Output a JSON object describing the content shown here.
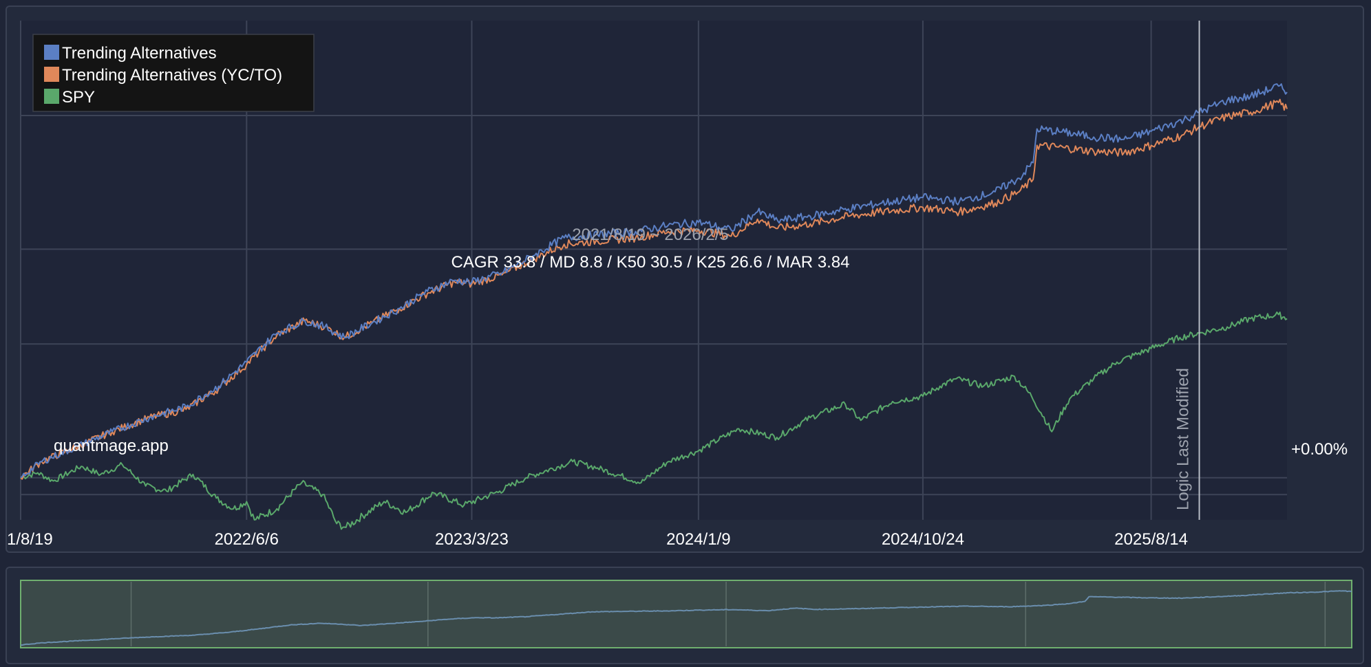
{
  "chart_data": {
    "type": "line",
    "date_range": "2021/8/19 ~ 2026/2/5",
    "stats": "CAGR 33.8 / MD 8.8 / K50 30.5 / K25 26.6 / MAR 3.84",
    "watermark": "quantmage.app",
    "marker_label": "Logic Last Modified",
    "marker_date": "2025-10-15",
    "baseline_label": "+0.00%",
    "x_start": "2021-08-19",
    "x_end": "2026-02-05",
    "x_ticks": [
      {
        "date": "2021-08-19",
        "label": "1/8/19"
      },
      {
        "date": "2022-06-06",
        "label": "2022/6/6"
      },
      {
        "date": "2023-03-23",
        "label": "2023/3/23"
      },
      {
        "date": "2024-01-09",
        "label": "2024/1/9"
      },
      {
        "date": "2024-10-24",
        "label": "2024/10/24"
      },
      {
        "date": "2025-08-14",
        "label": "2025/8/14"
      }
    ],
    "y_scale": "log",
    "y_range_pct": [
      -12,
      300
    ],
    "legend_position": "top-left",
    "grid": true,
    "series": [
      {
        "name": "Trending Alternatives",
        "color": "#5b7fc4",
        "points": [
          [
            "2021-08-19",
            0
          ],
          [
            "2021-09-15",
            5
          ],
          [
            "2021-11-01",
            10
          ],
          [
            "2021-12-15",
            15
          ],
          [
            "2022-02-01",
            20
          ],
          [
            "2022-03-20",
            24
          ],
          [
            "2022-05-01",
            32
          ],
          [
            "2022-06-06",
            42
          ],
          [
            "2022-07-15",
            55
          ],
          [
            "2022-08-20",
            61
          ],
          [
            "2022-09-15",
            58
          ],
          [
            "2022-10-10",
            53
          ],
          [
            "2022-11-15",
            60
          ],
          [
            "2022-12-20",
            67
          ],
          [
            "2023-01-25",
            76
          ],
          [
            "2023-03-01",
            82
          ],
          [
            "2023-03-23",
            81
          ],
          [
            "2023-05-01",
            86
          ],
          [
            "2023-06-10",
            96
          ],
          [
            "2023-07-20",
            107
          ],
          [
            "2023-09-01",
            109
          ],
          [
            "2023-10-20",
            111
          ],
          [
            "2023-12-01",
            115
          ],
          [
            "2024-01-09",
            117
          ],
          [
            "2024-02-20",
            112
          ],
          [
            "2024-03-25",
            124
          ],
          [
            "2024-04-20",
            118
          ],
          [
            "2024-06-01",
            121
          ],
          [
            "2024-07-20",
            126
          ],
          [
            "2024-09-01",
            130
          ],
          [
            "2024-10-24",
            134
          ],
          [
            "2024-12-10",
            131
          ],
          [
            "2025-01-25",
            138
          ],
          [
            "2025-02-25",
            148
          ],
          [
            "2025-03-15",
            160
          ],
          [
            "2025-03-20",
            188
          ],
          [
            "2025-04-25",
            185
          ],
          [
            "2025-06-01",
            181
          ],
          [
            "2025-07-10",
            179
          ],
          [
            "2025-08-14",
            186
          ],
          [
            "2025-09-25",
            196
          ],
          [
            "2025-10-15",
            203
          ],
          [
            "2025-11-20",
            214
          ],
          [
            "2025-12-20",
            218
          ],
          [
            "2026-01-25",
            228
          ],
          [
            "2026-02-05",
            222
          ]
        ]
      },
      {
        "name": "Trending Alternatives (YC/TO)",
        "color": "#e0885a",
        "points": [
          [
            "2021-08-19",
            0
          ],
          [
            "2021-09-15",
            5
          ],
          [
            "2021-11-01",
            10
          ],
          [
            "2021-12-15",
            15
          ],
          [
            "2022-02-01",
            20
          ],
          [
            "2022-03-20",
            23
          ],
          [
            "2022-05-01",
            31
          ],
          [
            "2022-06-06",
            41
          ],
          [
            "2022-07-15",
            54
          ],
          [
            "2022-08-20",
            61
          ],
          [
            "2022-09-15",
            58
          ],
          [
            "2022-10-10",
            53
          ],
          [
            "2022-11-15",
            60
          ],
          [
            "2022-12-20",
            67
          ],
          [
            "2023-01-25",
            75
          ],
          [
            "2023-03-01",
            81
          ],
          [
            "2023-03-23",
            80
          ],
          [
            "2023-05-01",
            85
          ],
          [
            "2023-06-10",
            94
          ],
          [
            "2023-07-20",
            103
          ],
          [
            "2023-09-01",
            105
          ],
          [
            "2023-10-20",
            107
          ],
          [
            "2023-12-01",
            111
          ],
          [
            "2024-01-09",
            112
          ],
          [
            "2024-02-20",
            108
          ],
          [
            "2024-03-25",
            119
          ],
          [
            "2024-04-20",
            113
          ],
          [
            "2024-06-01",
            116
          ],
          [
            "2024-07-20",
            121
          ],
          [
            "2024-09-01",
            124
          ],
          [
            "2024-10-24",
            127
          ],
          [
            "2024-12-10",
            124
          ],
          [
            "2025-01-25",
            130
          ],
          [
            "2025-02-25",
            138
          ],
          [
            "2025-03-15",
            147
          ],
          [
            "2025-03-20",
            174
          ],
          [
            "2025-04-25",
            172
          ],
          [
            "2025-06-01",
            169
          ],
          [
            "2025-07-10",
            168
          ],
          [
            "2025-08-14",
            174
          ],
          [
            "2025-09-25",
            183
          ],
          [
            "2025-10-15",
            190
          ],
          [
            "2025-11-20",
            199
          ],
          [
            "2025-12-20",
            203
          ],
          [
            "2026-01-25",
            212
          ],
          [
            "2026-02-05",
            206
          ]
        ]
      },
      {
        "name": "SPY",
        "color": "#5aa86b",
        "points": [
          [
            "2021-08-19",
            0
          ],
          [
            "2021-09-10",
            1.5
          ],
          [
            "2021-09-30",
            -1
          ],
          [
            "2021-11-05",
            3.5
          ],
          [
            "2021-11-30",
            1
          ],
          [
            "2021-12-28",
            4
          ],
          [
            "2022-01-27",
            -2.5
          ],
          [
            "2022-02-23",
            -4
          ],
          [
            "2022-03-29",
            1
          ],
          [
            "2022-04-28",
            -6
          ],
          [
            "2022-05-20",
            -9
          ],
          [
            "2022-06-06",
            -7
          ],
          [
            "2022-06-16",
            -12
          ],
          [
            "2022-07-15",
            -9
          ],
          [
            "2022-08-16",
            -1.5
          ],
          [
            "2022-09-12",
            -5
          ],
          [
            "2022-09-30",
            -13
          ],
          [
            "2022-10-12",
            -14
          ],
          [
            "2022-11-30",
            -7
          ],
          [
            "2022-12-28",
            -10
          ],
          [
            "2023-02-02",
            -4.5
          ],
          [
            "2023-03-13",
            -8
          ],
          [
            "2023-04-28",
            -4
          ],
          [
            "2023-06-01",
            0
          ],
          [
            "2023-07-31",
            5
          ],
          [
            "2023-09-01",
            3
          ],
          [
            "2023-10-27",
            -1.5
          ],
          [
            "2023-12-01",
            5
          ],
          [
            "2024-01-09",
            8.5
          ],
          [
            "2024-03-01",
            16
          ],
          [
            "2024-04-19",
            13
          ],
          [
            "2024-06-01",
            20
          ],
          [
            "2024-07-16",
            25
          ],
          [
            "2024-08-05",
            19
          ],
          [
            "2024-09-15",
            26
          ],
          [
            "2024-10-24",
            28
          ],
          [
            "2024-11-15",
            32
          ],
          [
            "2024-12-06",
            35
          ],
          [
            "2025-01-10",
            32
          ],
          [
            "2025-02-19",
            36
          ],
          [
            "2025-03-13",
            28
          ],
          [
            "2025-04-08",
            15
          ],
          [
            "2025-05-01",
            27
          ],
          [
            "2025-06-01",
            35
          ],
          [
            "2025-07-01",
            42
          ],
          [
            "2025-08-14",
            48
          ],
          [
            "2025-09-20",
            53
          ],
          [
            "2025-10-15",
            55
          ],
          [
            "2025-11-20",
            58
          ],
          [
            "2025-12-20",
            62
          ],
          [
            "2026-01-25",
            64
          ],
          [
            "2026-02-05",
            62
          ]
        ]
      }
    ]
  }
}
